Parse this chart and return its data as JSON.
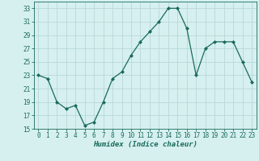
{
  "x": [
    0,
    1,
    2,
    3,
    4,
    5,
    6,
    7,
    8,
    9,
    10,
    11,
    12,
    13,
    14,
    15,
    16,
    17,
    18,
    19,
    20,
    21,
    22,
    23
  ],
  "y": [
    23,
    22.5,
    19,
    18,
    18.5,
    15.5,
    16,
    19,
    22.5,
    23.5,
    26,
    28,
    29.5,
    31,
    33,
    33,
    30,
    23,
    27,
    28,
    28,
    28,
    25,
    22
  ],
  "line_color": "#1a6b5a",
  "marker": "D",
  "marker_size": 2,
  "bg_color": "#d6f0ef",
  "grid_color": "#b8d8d8",
  "xlabel": "Humidex (Indice chaleur)",
  "ylim": [
    15,
    34
  ],
  "yticks": [
    15,
    17,
    19,
    21,
    23,
    25,
    27,
    29,
    31,
    33
  ],
  "xticks": [
    0,
    1,
    2,
    3,
    4,
    5,
    6,
    7,
    8,
    9,
    10,
    11,
    12,
    13,
    14,
    15,
    16,
    17,
    18,
    19,
    20,
    21,
    22,
    23
  ],
  "xlabel_fontsize": 6.5,
  "tick_fontsize": 5.5,
  "tick_color": "#1a6b5a",
  "linewidth": 0.9
}
